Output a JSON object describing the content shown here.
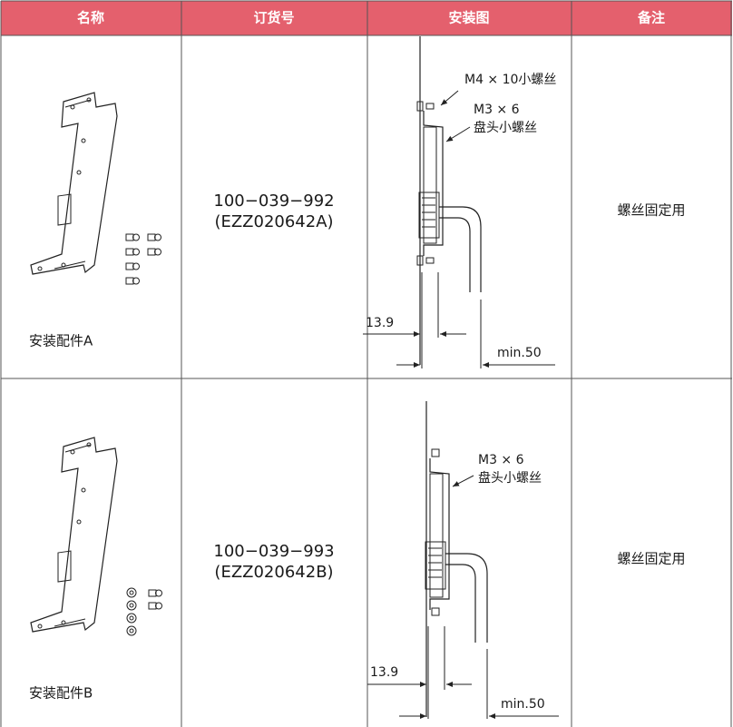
{
  "table": {
    "header": [
      "名称",
      "订货号",
      "安装图",
      "备注"
    ],
    "rows": [
      {
        "name": "安装配件A",
        "order_no": [
          "100−039−992",
          "(EZZ020642A)"
        ],
        "drawing_labels": [
          "M4 × 10小螺丝",
          "M3 × 6",
          "盘头小螺丝",
          "13.9",
          "min.50"
        ],
        "remark": "螺丝固定用"
      },
      {
        "name": "安装配件B",
        "order_no": [
          "100−039−993",
          "(EZZ020642B)"
        ],
        "drawing_labels": [
          "M3 × 6",
          "盘头小螺丝",
          "13.9",
          "min.50"
        ],
        "remark": "螺丝固定用"
      }
    ]
  }
}
